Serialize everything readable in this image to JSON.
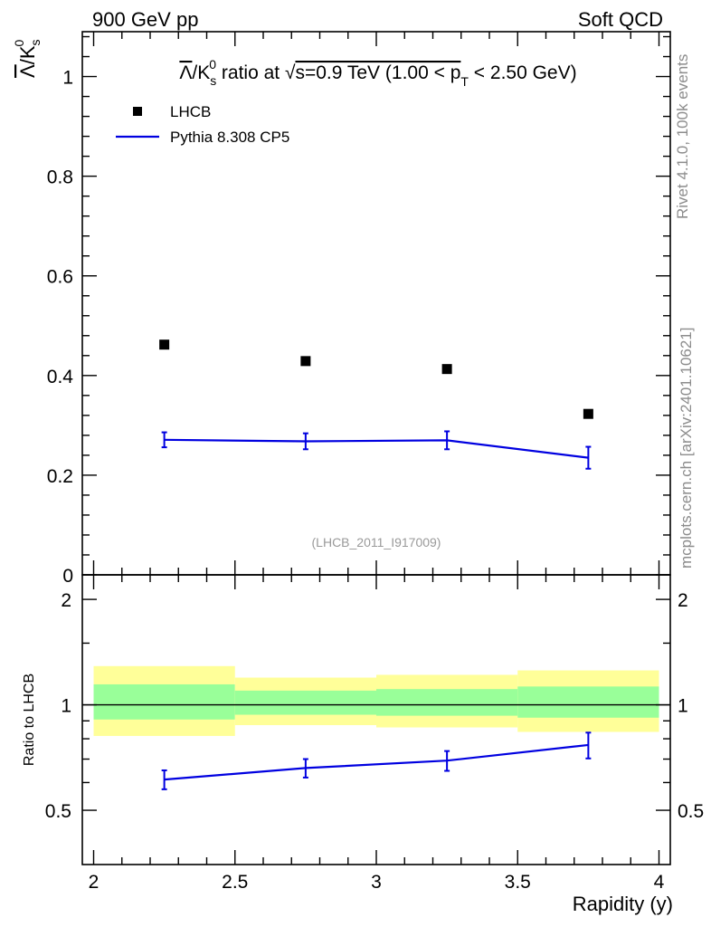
{
  "header": {
    "left": "900 GeV pp",
    "right": "Soft QCD"
  },
  "side_text": {
    "rivet": "Rivet 4.1.0,  100k events",
    "mcplots": "mcplots.cern.ch [arXiv:2401.10621]"
  },
  "chart_data": [
    {
      "type": "scatter",
      "panel": "main",
      "title": {
        "prefix": "/K",
        "sub": "s",
        "sup": "0",
        "mid": " ratio at ",
        "sqrt": "√",
        "s_text": "s=0.9 TeV (1.00 < p",
        "pt_sub": "T",
        "suffix": " < 2.50 GeV)"
      },
      "ylabel": {
        "base": "/K",
        "sub": "s",
        "sup": "0"
      },
      "lambda_symbol": "Λ",
      "ylim": [
        0,
        1.09
      ],
      "yticks": [
        0,
        0.2,
        0.4,
        0.6,
        0.8,
        1
      ],
      "ytick_labels": [
        "0",
        "0.2",
        "0.4",
        "0.6",
        "0.8",
        "1"
      ],
      "xlim": [
        1.96,
        4.04
      ],
      "watermark": "(LHCB_2011_I917009)",
      "legend": {
        "data_label": "LHCB",
        "mc_label": "Pythia 8.308 CP5",
        "placement": "top-left"
      },
      "series": [
        {
          "name": "LHCB",
          "kind": "markers",
          "x": [
            2.25,
            2.75,
            3.25,
            3.75
          ],
          "y": [
            0.462,
            0.429,
            0.413,
            0.323
          ]
        },
        {
          "name": "Pythia 8.308 CP5",
          "kind": "line",
          "color": "#0000e0",
          "x": [
            2.25,
            2.75,
            3.25,
            3.75
          ],
          "y": [
            0.271,
            0.268,
            0.27,
            0.235
          ],
          "err": [
            0.015,
            0.016,
            0.018,
            0.022
          ]
        }
      ]
    },
    {
      "type": "line",
      "panel": "ratio",
      "ylabel": "Ratio to LHCB",
      "xlabel": "Rapidity (y)",
      "ylim": [
        0.35,
        2.35
      ],
      "yticks": [
        0.5,
        1,
        2
      ],
      "ytick_labels": [
        "0.5",
        "1",
        "2"
      ],
      "xlim": [
        1.96,
        4.04
      ],
      "xticks": [
        2,
        2.5,
        3,
        3.5,
        4
      ],
      "xtick_labels": [
        "2",
        "2.5",
        "3",
        "3.5",
        "4"
      ],
      "bands": [
        {
          "x0": 2.0,
          "x1": 2.5,
          "yellow": [
            0.815,
            1.29
          ],
          "green": [
            0.908,
            1.144
          ]
        },
        {
          "x0": 2.5,
          "x1": 3.0,
          "yellow": [
            0.875,
            1.196
          ],
          "green": [
            0.937,
            1.098
          ]
        },
        {
          "x0": 3.0,
          "x1": 3.5,
          "yellow": [
            0.862,
            1.218
          ],
          "green": [
            0.931,
            1.109
          ]
        },
        {
          "x0": 3.5,
          "x1": 4.0,
          "yellow": [
            0.837,
            1.254
          ],
          "green": [
            0.919,
            1.128
          ]
        }
      ],
      "colors": {
        "yellow": "#ffff99",
        "green": "#99ff99",
        "mc": "#0000e0"
      },
      "series": [
        {
          "name": "Pythia 8.308 CP5",
          "x": [
            2.25,
            2.75,
            3.25,
            3.75
          ],
          "y": [
            0.612,
            0.66,
            0.693,
            0.768
          ],
          "err": [
            0.038,
            0.04,
            0.045,
            0.065
          ]
        }
      ]
    }
  ]
}
